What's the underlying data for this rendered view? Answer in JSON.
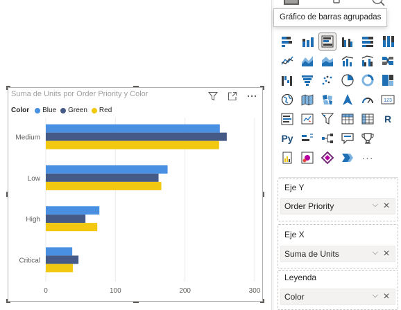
{
  "visual": {
    "title": "Suma de Units por Order Priority y Color",
    "legend": {
      "title": "Color",
      "items": [
        {
          "label": "Blue",
          "color": "#4a90e2"
        },
        {
          "label": "Green",
          "color": "#455a86"
        },
        {
          "label": "Red",
          "color": "#f2c811"
        }
      ]
    },
    "header_icons": [
      "filter-icon",
      "focus-mode-icon",
      "more-options-icon"
    ]
  },
  "chart_data": {
    "type": "bar",
    "orientation": "horizontal",
    "title": "Suma de Units por Order Priority y Color",
    "categories": [
      "Medium",
      "Low",
      "High",
      "Critical"
    ],
    "series": [
      {
        "name": "Blue",
        "color": "#4a90e2",
        "values": [
          250,
          175,
          77,
          38
        ]
      },
      {
        "name": "Green",
        "color": "#455a86",
        "values": [
          260,
          162,
          57,
          47
        ]
      },
      {
        "name": "Red",
        "color": "#f2c811",
        "values": [
          249,
          166,
          74,
          39
        ]
      }
    ],
    "xlim": [
      0,
      300
    ],
    "xticks": [
      "0",
      "100",
      "200",
      "300"
    ],
    "grid": true,
    "legend_position": "top-left"
  },
  "pane": {
    "tooltip": "Gráfico de barras agrupadas",
    "wells": [
      {
        "label": "Eje Y",
        "field": "Order Priority"
      },
      {
        "label": "Eje X",
        "field": "Suma de Units"
      },
      {
        "label": "Leyenda",
        "field": "Color"
      }
    ],
    "visual_types": [
      "stacked-bar-chart-icon",
      "stacked-column-chart-icon",
      "clustered-bar-chart-icon",
      "clustered-column-chart-icon",
      "100-stacked-bar-chart-icon",
      "100-stacked-column-chart-icon",
      "line-chart-icon",
      "area-chart-icon",
      "stacked-area-chart-icon",
      "line-and-column-chart-icon",
      "line-and-clustered-column-chart-icon",
      "ribbon-chart-icon",
      "waterfall-chart-icon",
      "funnel-chart-icon",
      "scatter-chart-icon",
      "pie-chart-icon",
      "donut-chart-icon",
      "treemap-icon",
      "map-icon",
      "filled-map-icon",
      "shape-map-icon",
      "azure-map-icon",
      "gauge-icon",
      "card-icon",
      "multi-row-card-icon",
      "kpi-icon",
      "slicer-icon",
      "table-icon",
      "matrix-icon",
      "r-visual-icon",
      "python-visual-icon",
      "key-influencers-icon",
      "decomposition-tree-icon",
      "qa-icon",
      "goals-icon",
      "",
      "paginated-report-icon",
      "power-apps-icon",
      "power-automate-icon",
      "smart-narrative-icon",
      "more-visuals-icon",
      ""
    ],
    "glyphs": {
      "r": "R",
      "py": "Py",
      "more": "···",
      "card": "123"
    }
  }
}
